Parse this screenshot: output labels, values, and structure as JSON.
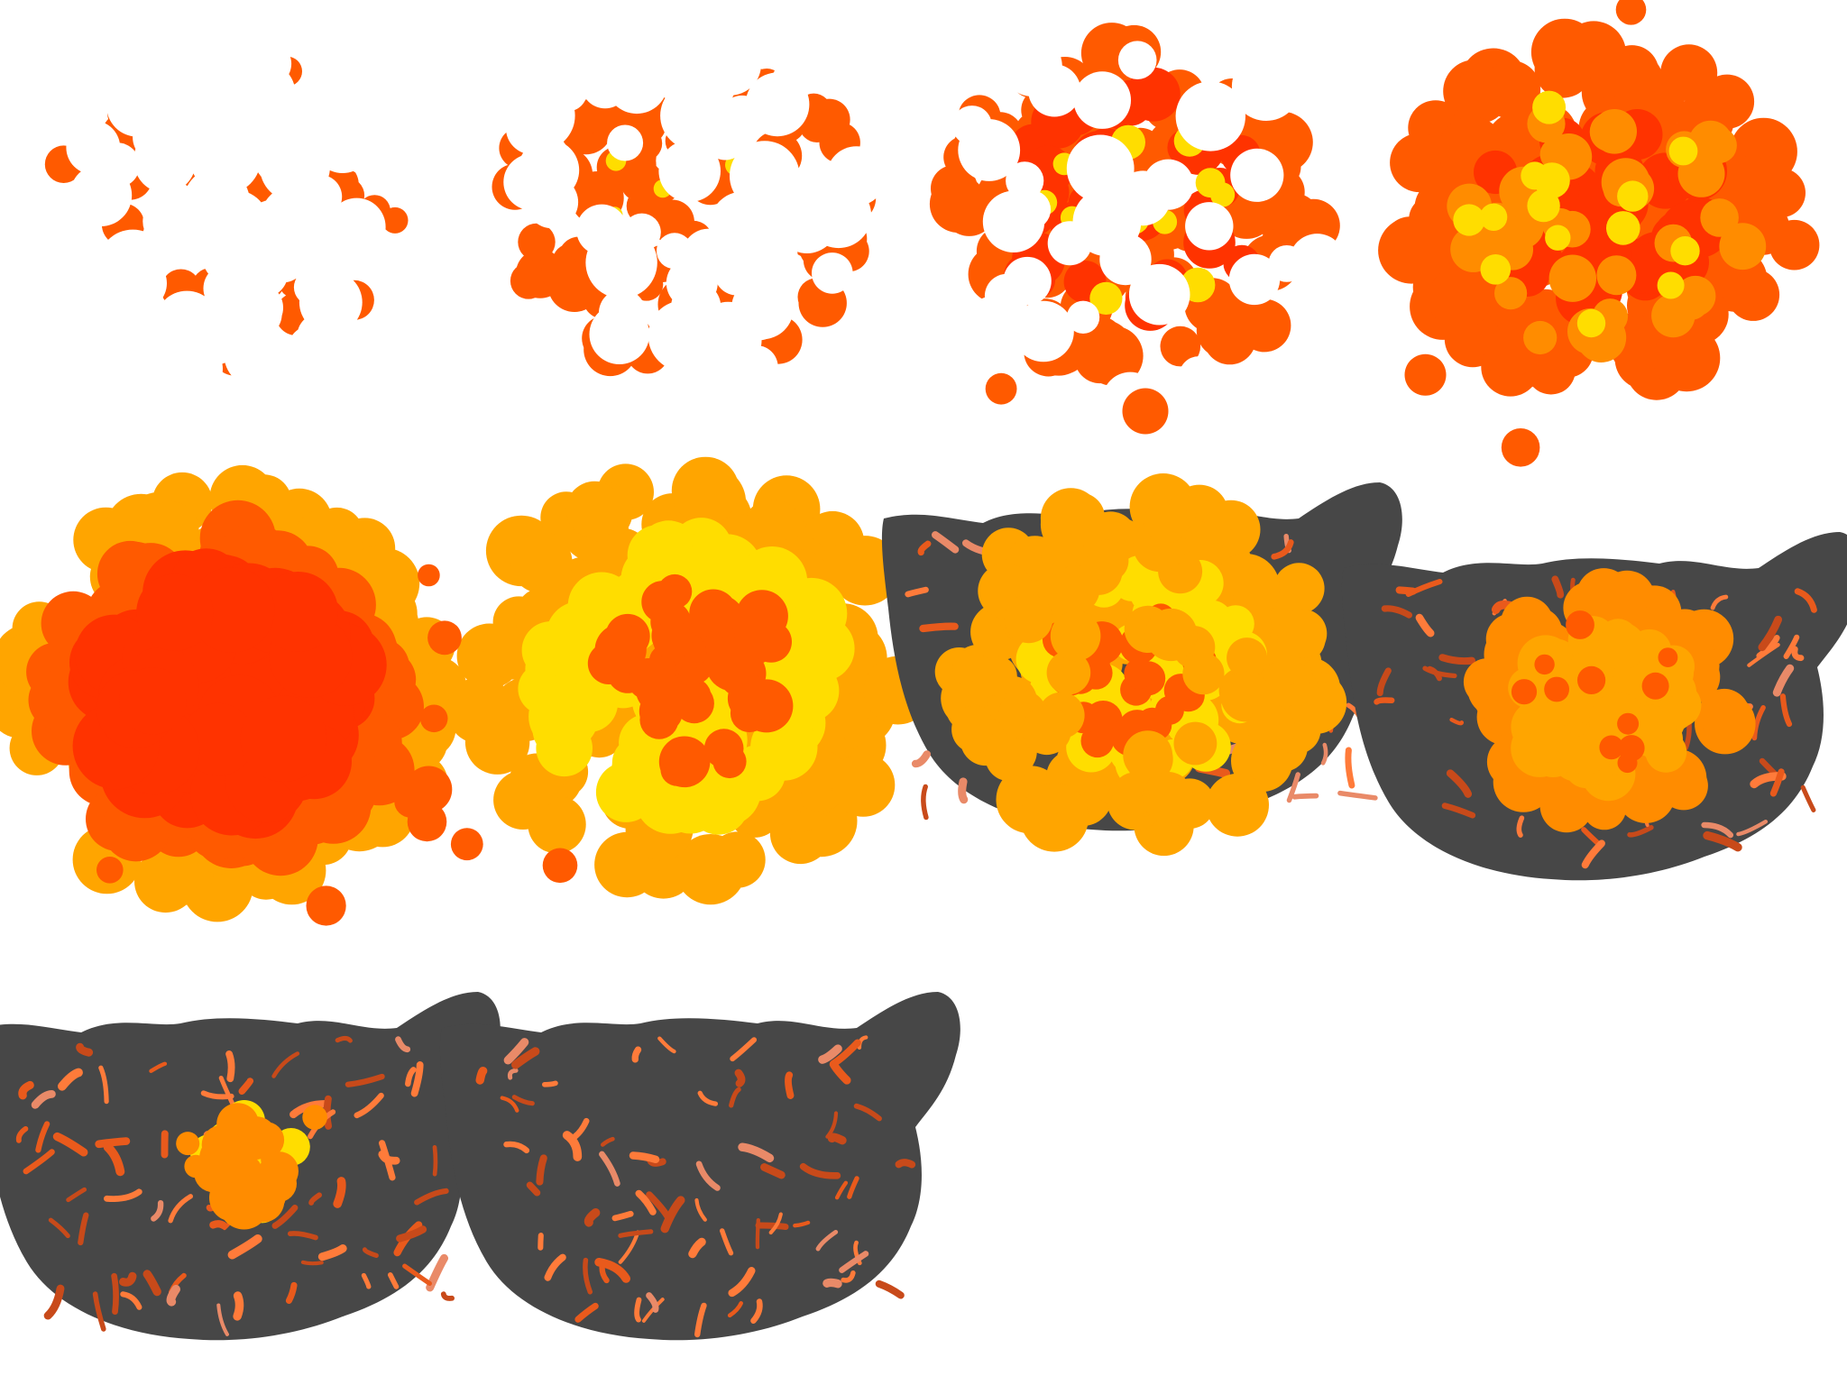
{
  "sprite_sheet": {
    "background": "#ffffff",
    "columns": 4,
    "rows": 3,
    "frame_count": 10,
    "palette": {
      "red": "#ff3300",
      "red_orange": "#ff5a00",
      "orange": "#ff8c00",
      "amber": "#ffa500",
      "yellow": "#ffdd00",
      "scorch_dark": "#474747",
      "ember_light": "#ff7b3a",
      "ember_mid": "#e95a1c",
      "ember_dark": "#c84a1a",
      "ember_pale": "#e98a68"
    },
    "frames": [
      {
        "index": 1,
        "stage": "ignition-sparks",
        "fire": 0.12,
        "scorch": 0.0
      },
      {
        "index": 2,
        "stage": "ignition-growing",
        "fire": 0.32,
        "scorch": 0.0
      },
      {
        "index": 3,
        "stage": "fireball-forming",
        "fire": 0.58,
        "scorch": 0.0
      },
      {
        "index": 4,
        "stage": "fireball",
        "fire": 0.82,
        "scorch": 0.0
      },
      {
        "index": 5,
        "stage": "peak-blast",
        "fire": 1.0,
        "scorch": 0.0
      },
      {
        "index": 6,
        "stage": "blast-cooling",
        "fire": 0.95,
        "scorch": 0.0
      },
      {
        "index": 7,
        "stage": "blast-fading-over-scorch",
        "fire": 0.7,
        "scorch": 0.25
      },
      {
        "index": 8,
        "stage": "flames-on-scorch",
        "fire": 0.4,
        "scorch": 1.0
      },
      {
        "index": 9,
        "stage": "embers-on-scorch",
        "fire": 0.15,
        "scorch": 1.0
      },
      {
        "index": 10,
        "stage": "scorch-mark",
        "fire": 0.0,
        "scorch": 1.0
      }
    ]
  }
}
